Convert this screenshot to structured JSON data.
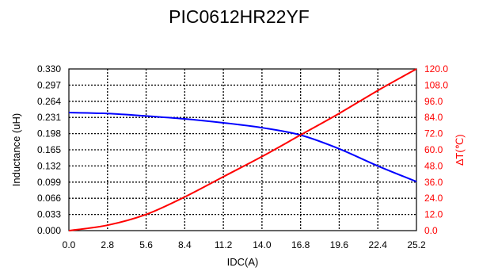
{
  "chart_data": {
    "type": "line",
    "title": "PIC0612HR22YF",
    "xlabel": "IDC(A)",
    "ylabel_left": "Inductance (uH)",
    "ylabel_right": "∆T(℃)",
    "xlim": [
      0,
      25.2
    ],
    "ylim_left": [
      0,
      0.33
    ],
    "ylim_right": [
      0,
      120
    ],
    "x_ticks": [
      "0.0",
      "2.8",
      "5.6",
      "8.4",
      "11.2",
      "14.0",
      "16.8",
      "19.6",
      "22.4",
      "25.2"
    ],
    "y_left_ticks": [
      "0.000",
      "0.033",
      "0.066",
      "0.099",
      "0.132",
      "0.165",
      "0.198",
      "0.231",
      "0.264",
      "0.297",
      "0.330"
    ],
    "y_right_ticks": [
      "0.0",
      "12.0",
      "24.0",
      "36.0",
      "48.0",
      "60.0",
      "72.0",
      "84.0",
      "96.0",
      "108.0",
      "120.0"
    ],
    "grid": true,
    "series": [
      {
        "axis": "left",
        "color": "#0000ff",
        "x": [
          0,
          2.8,
          5.6,
          8.4,
          11.2,
          14.0,
          16.8,
          19.6,
          22.4,
          25.2
        ],
        "values": [
          0.241,
          0.239,
          0.234,
          0.228,
          0.22,
          0.21,
          0.195,
          0.167,
          0.132,
          0.1
        ]
      },
      {
        "axis": "right",
        "color": "#ff0000",
        "x": [
          0,
          2.8,
          5.6,
          8.4,
          11.2,
          14.0,
          16.8,
          19.6,
          22.4,
          25.2
        ],
        "values": [
          0,
          4,
          12,
          25,
          40,
          55,
          71,
          87,
          104,
          120
        ]
      }
    ]
  }
}
